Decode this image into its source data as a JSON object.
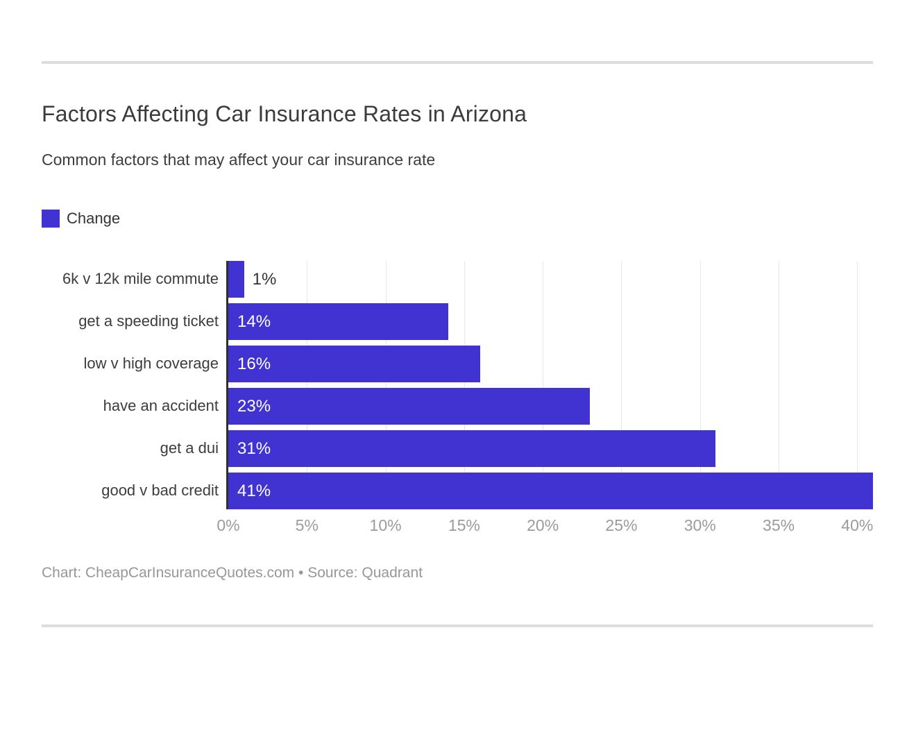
{
  "header": {
    "title": "Factors Affecting Car Insurance Rates in Arizona",
    "subtitle": "Common factors that may affect your car insurance rate"
  },
  "legend": {
    "label": "Change",
    "color": "#4033d1"
  },
  "chart_data": {
    "type": "bar",
    "orientation": "horizontal",
    "title": "Factors Affecting Car Insurance Rates in Arizona",
    "subtitle": "Common factors that may affect your car insurance rate",
    "series_name": "Change",
    "categories": [
      "6k v 12k mile commute",
      "get a speeding ticket",
      "low v high coverage",
      "have an accident",
      "get a dui",
      "good v bad credit"
    ],
    "values": [
      1,
      14,
      16,
      23,
      31,
      41
    ],
    "value_labels": [
      "1%",
      "14%",
      "16%",
      "23%",
      "31%",
      "41%"
    ],
    "xlabel": "",
    "ylabel": "",
    "xlim": [
      0,
      41
    ],
    "x_tick_values": [
      0,
      5,
      10,
      15,
      20,
      25,
      30,
      35,
      40
    ],
    "x_tick_labels": [
      "0%",
      "5%",
      "10%",
      "15%",
      "20%",
      "25%",
      "30%",
      "35%",
      "40%"
    ],
    "grid": true,
    "bar_color": "#4033d1",
    "axis_line_color": "#2f2f2f",
    "legend_position": "top-left"
  },
  "footer": {
    "text": "Chart: CheapCarInsuranceQuotes.com • Source: Quadrant"
  }
}
